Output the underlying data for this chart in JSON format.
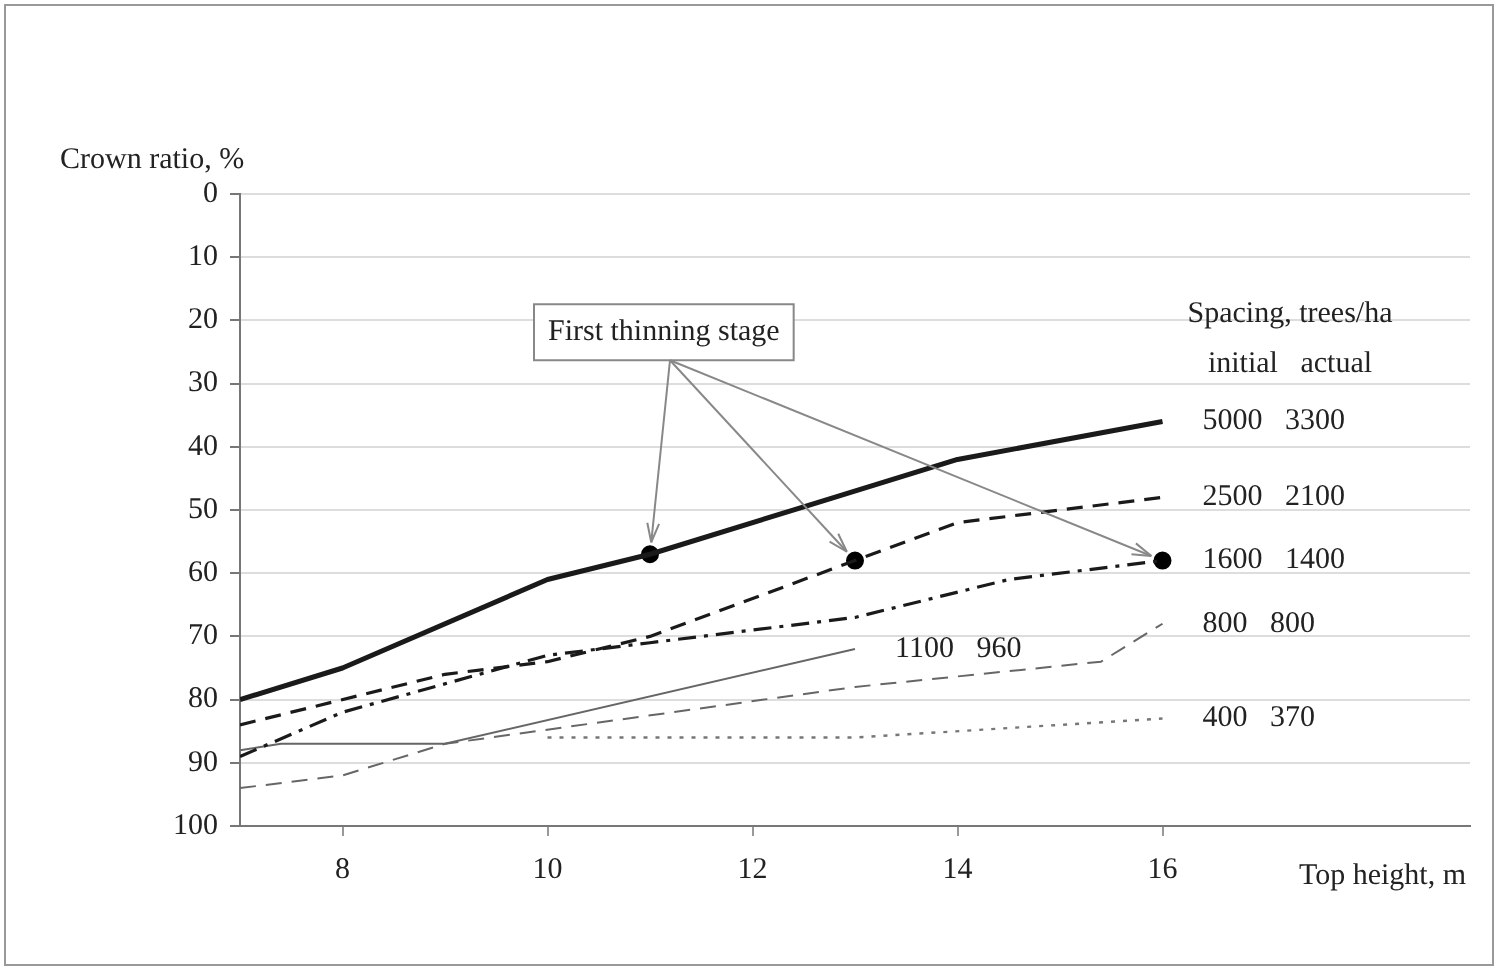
{
  "chart_data": {
    "type": "line",
    "xlabel": "Top height, m",
    "ylabel": "Crown ratio, %",
    "legend_title": "Spacing, trees/ha",
    "annotations": [
      {
        "text": "First thinning stage",
        "x": 11,
        "y": 57
      },
      "initial   actual"
    ],
    "xlim": [
      7,
      19
    ],
    "xticks": [
      8,
      10,
      12,
      14,
      16
    ],
    "ylim": [
      100,
      0
    ],
    "yticks": [
      0,
      10,
      20,
      30,
      40,
      50,
      60,
      70,
      80,
      90,
      100
    ],
    "grid": "y",
    "legend": false,
    "marker": "none",
    "series": [
      {
        "name": "5000   3300",
        "color": "#1a1a1a",
        "line_style": "solid",
        "x": [
          7,
          8,
          10,
          11,
          14,
          16
        ],
        "values": [
          80,
          75,
          61,
          57,
          42,
          36
        ]
      },
      {
        "name": "2500   2100",
        "color": "#1a1a1a",
        "line_style": "dashed",
        "x": [
          7,
          9,
          10,
          11,
          13,
          14,
          16
        ],
        "values": [
          84,
          76,
          74,
          70,
          58,
          52,
          48
        ]
      },
      {
        "name": "1600   1400",
        "color": "#1a1a1a",
        "line_style": "dashdot",
        "x": [
          7,
          8,
          10,
          11,
          13,
          14.5,
          16
        ],
        "values": [
          89,
          82,
          73,
          71,
          67,
          61,
          58
        ]
      },
      {
        "name": "1100   960",
        "color": "#666666",
        "line_style": "solid",
        "x": [
          7,
          7.4,
          9,
          13
        ],
        "values": [
          88,
          87,
          87,
          72
        ]
      },
      {
        "name": "800   800",
        "color": "#666666",
        "line_style": "dashed",
        "x": [
          7,
          8,
          9,
          13,
          15.4,
          16
        ],
        "values": [
          94,
          92,
          87,
          78,
          74,
          68
        ]
      },
      {
        "name": "400   370",
        "color": "#777777",
        "line_style": "dotted",
        "x": [
          10,
          13,
          16
        ],
        "values": [
          86,
          86,
          83
        ]
      },
      {
        "type": "scatter",
        "color": "#000000",
        "marker": "circle",
        "x": [
          11,
          13,
          16
        ],
        "values": [
          57,
          58,
          58
        ]
      }
    ]
  }
}
